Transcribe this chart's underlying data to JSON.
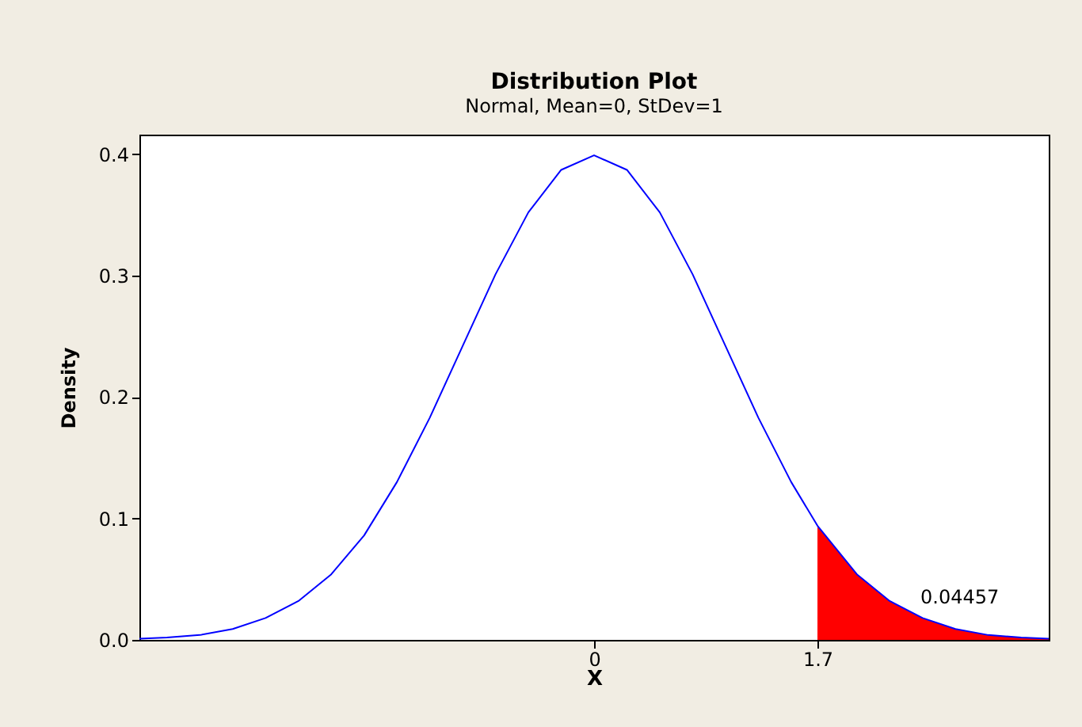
{
  "chart_data": {
    "type": "line",
    "title": "Distribution Plot",
    "subtitle": "Normal, Mean=0, StDev=1",
    "xlabel": "X",
    "ylabel": "Density",
    "xlim": [
      -3.46,
      3.46
    ],
    "xticks": [
      0,
      1.7
    ],
    "ylim": [
      0,
      0.416
    ],
    "yticks": [
      {
        "value": 0,
        "label": "0.0"
      },
      0.1,
      0.2,
      0.3,
      0.4
    ],
    "marker": "none",
    "line_style": "solid",
    "series": [
      {
        "type": "line",
        "color": "#0000ff",
        "x": [
          -3.46,
          -3.25,
          -3.0,
          -2.75,
          -2.5,
          -2.25,
          -2.0,
          -1.75,
          -1.5,
          -1.25,
          -1.0,
          -0.75,
          -0.5,
          -0.25,
          0,
          0.25,
          0.5,
          0.75,
          1.0,
          1.25,
          1.5,
          1.7,
          2.0,
          2.25,
          2.5,
          2.75,
          3.0,
          3.25,
          3.46
        ],
        "values": [
          0.001,
          0.002,
          0.004,
          0.009,
          0.018,
          0.032,
          0.054,
          0.086,
          0.13,
          0.183,
          0.242,
          0.301,
          0.352,
          0.387,
          0.399,
          0.387,
          0.352,
          0.301,
          0.242,
          0.183,
          0.13,
          0.094,
          0.054,
          0.032,
          0.018,
          0.009,
          0.004,
          0.002,
          0.001
        ]
      },
      {
        "type": "area",
        "color": "#ff0000",
        "x": [
          1.7,
          2.0,
          2.25,
          2.5,
          2.75,
          3.0,
          3.25,
          3.46
        ],
        "values": [
          0.094,
          0.054,
          0.032,
          0.018,
          0.009,
          0.004,
          0.002,
          0.001
        ]
      }
    ],
    "annotations": [
      "0.04457"
    ]
  }
}
